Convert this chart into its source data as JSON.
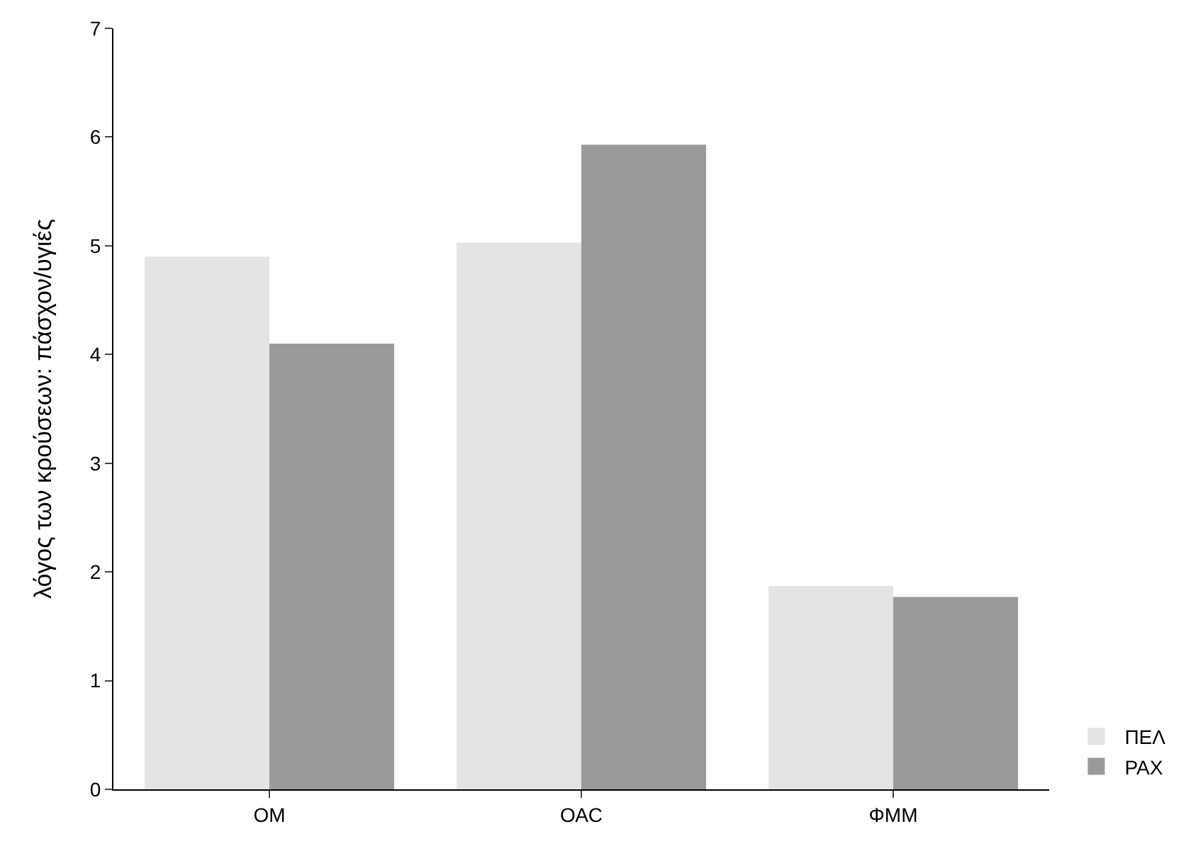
{
  "chart_data": {
    "type": "bar",
    "ylabel": "λόγος των κρούσεων: πάσχον/υγιές",
    "categories": [
      "ΟΜ",
      "ΟΑC",
      "ΦΜΜ"
    ],
    "series": [
      {
        "name": "ΠΕΛ",
        "color": "#e4e4e4",
        "values": [
          4.9,
          5.03,
          1.87
        ]
      },
      {
        "name": "ΡΑΧ",
        "color": "#9a9a9a",
        "values": [
          4.1,
          5.93,
          1.77
        ]
      }
    ],
    "ylim": [
      0,
      7
    ],
    "yticks": [
      0,
      1,
      2,
      3,
      4,
      5,
      6,
      7
    ],
    "grid": false,
    "legend": "bottom right"
  }
}
